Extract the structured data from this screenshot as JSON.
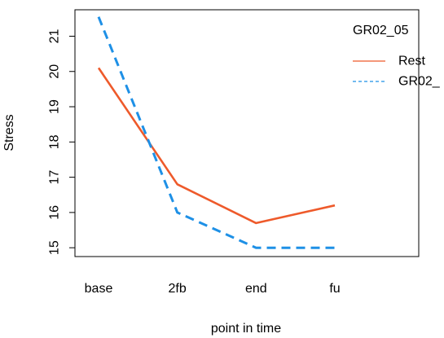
{
  "chart_data": {
    "type": "line",
    "xlabel": "point in time",
    "ylabel": "Stress",
    "categories": [
      "base",
      "2fb",
      "end",
      "fu"
    ],
    "yticks": [
      15,
      16,
      17,
      18,
      19,
      20,
      21
    ],
    "ylim": [
      14.75,
      21.75
    ],
    "grid": false,
    "legend": {
      "title": "GR02_05",
      "placement": "top-right"
    },
    "series": [
      {
        "name": "Rest",
        "values": [
          20.1,
          16.8,
          15.7,
          16.2
        ],
        "color": "#EE5A2B",
        "dash": "solid"
      },
      {
        "name": "GR02_",
        "values": [
          21.55,
          16.0,
          15.0,
          15.0
        ],
        "color": "#1E90E6",
        "dash": "dashed"
      }
    ]
  }
}
